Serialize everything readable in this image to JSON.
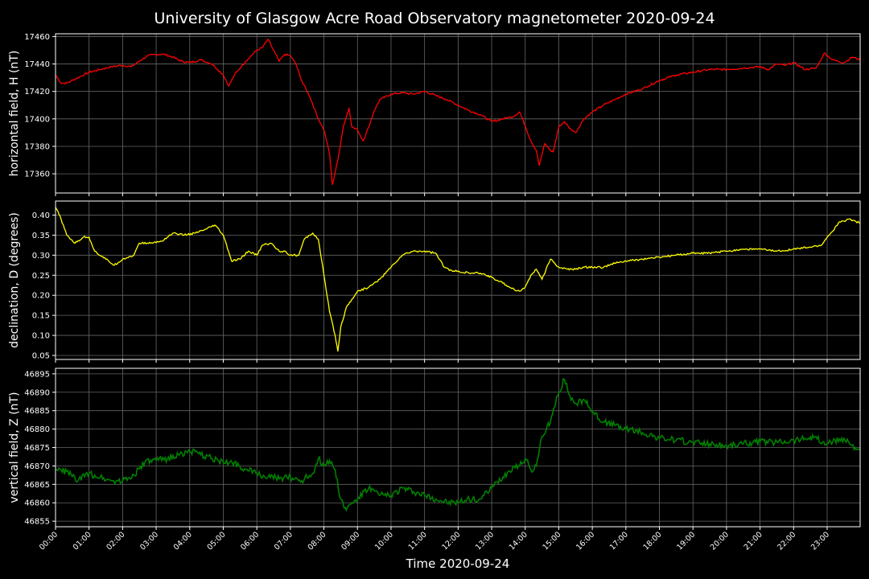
{
  "colors": {
    "background": "#000000",
    "grid": "#666666",
    "axis": "#ffffff",
    "H": "#ff0000",
    "D": "#ffff00",
    "Z": "#008000"
  },
  "chart_data": {
    "type": "line",
    "title": "University of Glasgow Acre Road Observatory magnetometer 2020-09-24",
    "xlabel": "Time 2020-09-24",
    "x_ticks": [
      "00:00",
      "01:00",
      "02:00",
      "03:00",
      "04:00",
      "05:00",
      "06:00",
      "07:00",
      "08:00",
      "09:00",
      "10:00",
      "11:00",
      "12:00",
      "13:00",
      "14:00",
      "15:00",
      "16:00",
      "17:00",
      "18:00",
      "19:00",
      "20:00",
      "21:00",
      "22:00",
      "23:00"
    ],
    "xlim": [
      "00:00",
      "23:59"
    ],
    "grid": true,
    "panels": [
      {
        "key": "H",
        "ylabel": "horizontal field, H (nT)",
        "ylim": [
          17346,
          17462
        ],
        "y_ticks": [
          17360,
          17380,
          17400,
          17420,
          17440,
          17460
        ],
        "tick_labels": [
          "17360",
          "17380",
          "17400",
          "17420",
          "17440",
          "17460"
        ],
        "points": [
          [
            "00:00",
            17432
          ],
          [
            "00:10",
            17426
          ],
          [
            "00:20",
            17426
          ],
          [
            "00:30",
            17428
          ],
          [
            "00:45",
            17431
          ],
          [
            "01:00",
            17434
          ],
          [
            "01:20",
            17436
          ],
          [
            "01:40",
            17438
          ],
          [
            "02:00",
            17439
          ],
          [
            "02:15",
            17438
          ],
          [
            "02:30",
            17442
          ],
          [
            "02:45",
            17446
          ],
          [
            "03:00",
            17447
          ],
          [
            "03:15",
            17447
          ],
          [
            "03:30",
            17445
          ],
          [
            "03:45",
            17442
          ],
          [
            "04:00",
            17441
          ],
          [
            "04:20",
            17443
          ],
          [
            "04:40",
            17440
          ],
          [
            "04:50",
            17436
          ],
          [
            "05:00",
            17432
          ],
          [
            "05:10",
            17424
          ],
          [
            "05:20",
            17432
          ],
          [
            "05:40",
            17442
          ],
          [
            "06:00",
            17450
          ],
          [
            "06:10",
            17452
          ],
          [
            "06:20",
            17458
          ],
          [
            "06:30",
            17450
          ],
          [
            "06:40",
            17442
          ],
          [
            "06:50",
            17447
          ],
          [
            "07:00",
            17446
          ],
          [
            "07:10",
            17440
          ],
          [
            "07:20",
            17428
          ],
          [
            "07:35",
            17416
          ],
          [
            "07:50",
            17400
          ],
          [
            "08:00",
            17392
          ],
          [
            "08:10",
            17375
          ],
          [
            "08:15",
            17352
          ],
          [
            "08:25",
            17370
          ],
          [
            "08:35",
            17395
          ],
          [
            "08:45",
            17408
          ],
          [
            "08:50",
            17394
          ],
          [
            "09:00",
            17392
          ],
          [
            "09:10",
            17384
          ],
          [
            "09:20",
            17394
          ],
          [
            "09:30",
            17406
          ],
          [
            "09:40",
            17414
          ],
          [
            "10:00",
            17418
          ],
          [
            "10:20",
            17419
          ],
          [
            "10:40",
            17418
          ],
          [
            "11:00",
            17420
          ],
          [
            "11:20",
            17417
          ],
          [
            "11:40",
            17414
          ],
          [
            "12:00",
            17410
          ],
          [
            "12:20",
            17406
          ],
          [
            "12:40",
            17403
          ],
          [
            "13:00",
            17398
          ],
          [
            "13:20",
            17400
          ],
          [
            "13:40",
            17402
          ],
          [
            "13:50",
            17405
          ],
          [
            "14:00",
            17395
          ],
          [
            "14:10",
            17384
          ],
          [
            "14:20",
            17377
          ],
          [
            "14:25",
            17366
          ],
          [
            "14:35",
            17382
          ],
          [
            "14:45",
            17377
          ],
          [
            "14:50",
            17376
          ],
          [
            "15:00",
            17394
          ],
          [
            "15:10",
            17398
          ],
          [
            "15:20",
            17393
          ],
          [
            "15:30",
            17390
          ],
          [
            "15:45",
            17400
          ],
          [
            "16:00",
            17405
          ],
          [
            "16:20",
            17410
          ],
          [
            "16:40",
            17414
          ],
          [
            "17:00",
            17418
          ],
          [
            "17:30",
            17422
          ],
          [
            "18:00",
            17428
          ],
          [
            "18:30",
            17432
          ],
          [
            "19:00",
            17434
          ],
          [
            "19:30",
            17436
          ],
          [
            "20:00",
            17436
          ],
          [
            "20:30",
            17437
          ],
          [
            "21:00",
            17438
          ],
          [
            "21:15",
            17436
          ],
          [
            "21:30",
            17440
          ],
          [
            "21:45",
            17439
          ],
          [
            "22:00",
            17441
          ],
          [
            "22:20",
            17436
          ],
          [
            "22:40",
            17437
          ],
          [
            "22:50",
            17444
          ],
          [
            "22:55",
            17448
          ],
          [
            "23:10",
            17443
          ],
          [
            "23:30",
            17441
          ],
          [
            "23:45",
            17445
          ],
          [
            "23:59",
            17443
          ]
        ]
      },
      {
        "key": "D",
        "ylabel": "declination, D (degrees)",
        "ylim": [
          0.04,
          0.435
        ],
        "y_ticks": [
          0.05,
          0.1,
          0.15,
          0.2,
          0.25,
          0.3,
          0.35,
          0.4
        ],
        "tick_labels": [
          "0.05",
          "0.10",
          "0.15",
          "0.20",
          "0.25",
          "0.30",
          "0.35",
          "0.40"
        ],
        "points": [
          [
            "00:00",
            0.42
          ],
          [
            "00:10",
            0.39
          ],
          [
            "00:20",
            0.35
          ],
          [
            "00:35",
            0.33
          ],
          [
            "00:50",
            0.345
          ],
          [
            "01:00",
            0.345
          ],
          [
            "01:10",
            0.31
          ],
          [
            "01:30",
            0.29
          ],
          [
            "01:45",
            0.275
          ],
          [
            "02:00",
            0.29
          ],
          [
            "02:20",
            0.3
          ],
          [
            "02:30",
            0.33
          ],
          [
            "02:50",
            0.33
          ],
          [
            "03:10",
            0.335
          ],
          [
            "03:30",
            0.355
          ],
          [
            "03:50",
            0.35
          ],
          [
            "04:10",
            0.355
          ],
          [
            "04:30",
            0.365
          ],
          [
            "04:45",
            0.375
          ],
          [
            "05:00",
            0.35
          ],
          [
            "05:15",
            0.285
          ],
          [
            "05:30",
            0.29
          ],
          [
            "05:45",
            0.31
          ],
          [
            "06:00",
            0.3
          ],
          [
            "06:10",
            0.325
          ],
          [
            "06:25",
            0.33
          ],
          [
            "06:40",
            0.31
          ],
          [
            "06:50",
            0.31
          ],
          [
            "07:00",
            0.3
          ],
          [
            "07:15",
            0.3
          ],
          [
            "07:25",
            0.34
          ],
          [
            "07:40",
            0.355
          ],
          [
            "07:50",
            0.34
          ],
          [
            "08:00",
            0.25
          ],
          [
            "08:10",
            0.16
          ],
          [
            "08:20",
            0.1
          ],
          [
            "08:25",
            0.06
          ],
          [
            "08:30",
            0.12
          ],
          [
            "08:40",
            0.17
          ],
          [
            "08:50",
            0.19
          ],
          [
            "09:00",
            0.21
          ],
          [
            "09:20",
            0.22
          ],
          [
            "09:40",
            0.24
          ],
          [
            "10:00",
            0.27
          ],
          [
            "10:20",
            0.3
          ],
          [
            "10:40",
            0.31
          ],
          [
            "11:00",
            0.31
          ],
          [
            "11:20",
            0.305
          ],
          [
            "11:35",
            0.27
          ],
          [
            "11:50",
            0.26
          ],
          [
            "12:00",
            0.26
          ],
          [
            "12:20",
            0.255
          ],
          [
            "12:40",
            0.255
          ],
          [
            "13:00",
            0.245
          ],
          [
            "13:20",
            0.23
          ],
          [
            "13:40",
            0.215
          ],
          [
            "13:50",
            0.21
          ],
          [
            "14:00",
            0.22
          ],
          [
            "14:10",
            0.25
          ],
          [
            "14:20",
            0.265
          ],
          [
            "14:30",
            0.24
          ],
          [
            "14:45",
            0.29
          ],
          [
            "15:00",
            0.27
          ],
          [
            "15:15",
            0.265
          ],
          [
            "15:30",
            0.265
          ],
          [
            "15:45",
            0.27
          ],
          [
            "16:00",
            0.27
          ],
          [
            "16:20",
            0.27
          ],
          [
            "16:40",
            0.28
          ],
          [
            "17:00",
            0.285
          ],
          [
            "17:30",
            0.29
          ],
          [
            "18:00",
            0.295
          ],
          [
            "18:30",
            0.3
          ],
          [
            "19:00",
            0.305
          ],
          [
            "19:30",
            0.305
          ],
          [
            "20:00",
            0.31
          ],
          [
            "20:30",
            0.315
          ],
          [
            "21:00",
            0.315
          ],
          [
            "21:30",
            0.31
          ],
          [
            "22:00",
            0.315
          ],
          [
            "22:30",
            0.32
          ],
          [
            "22:50",
            0.325
          ],
          [
            "23:00",
            0.345
          ],
          [
            "23:10",
            0.36
          ],
          [
            "23:20",
            0.38
          ],
          [
            "23:40",
            0.39
          ],
          [
            "23:59",
            0.38
          ]
        ]
      },
      {
        "key": "Z",
        "ylabel": "vertical field, Z (nT)",
        "ylim": [
          46853.5,
          46896.5
        ],
        "y_ticks": [
          46855,
          46860,
          46865,
          46870,
          46875,
          46880,
          46885,
          46890,
          46895
        ],
        "tick_labels": [
          "46855",
          "46860",
          "46865",
          "46870",
          "46875",
          "46880",
          "46885",
          "46890",
          "46895"
        ],
        "points": [
          [
            "00:00",
            46869
          ],
          [
            "00:20",
            46868.5
          ],
          [
            "00:40",
            46866
          ],
          [
            "01:00",
            46868
          ],
          [
            "01:20",
            46867
          ],
          [
            "01:40",
            46866
          ],
          [
            "02:00",
            46866
          ],
          [
            "02:20",
            46867.5
          ],
          [
            "02:40",
            46871
          ],
          [
            "03:00",
            46871.5
          ],
          [
            "03:20",
            46872
          ],
          [
            "03:40",
            46873
          ],
          [
            "04:00",
            46874
          ],
          [
            "04:20",
            46873
          ],
          [
            "04:40",
            46872
          ],
          [
            "05:00",
            46871
          ],
          [
            "05:20",
            46871
          ],
          [
            "05:40",
            46869
          ],
          [
            "06:00",
            46868
          ],
          [
            "06:20",
            46867
          ],
          [
            "06:40",
            46866.5
          ],
          [
            "07:00",
            46867
          ],
          [
            "07:20",
            46866
          ],
          [
            "07:40",
            46868
          ],
          [
            "07:50",
            46872
          ],
          [
            "08:00",
            46870
          ],
          [
            "08:10",
            46871.5
          ],
          [
            "08:20",
            46869
          ],
          [
            "08:30",
            46861
          ],
          [
            "08:40",
            46858
          ],
          [
            "08:50",
            46860
          ],
          [
            "09:00",
            46861
          ],
          [
            "09:20",
            46864
          ],
          [
            "09:40",
            46862
          ],
          [
            "10:00",
            46862
          ],
          [
            "10:20",
            46864
          ],
          [
            "10:40",
            46863
          ],
          [
            "11:00",
            46862
          ],
          [
            "11:20",
            46861
          ],
          [
            "11:40",
            46860
          ],
          [
            "12:00",
            46860
          ],
          [
            "12:20",
            46861
          ],
          [
            "12:40",
            46861
          ],
          [
            "13:00",
            46864
          ],
          [
            "13:20",
            46867
          ],
          [
            "13:40",
            46870
          ],
          [
            "13:50",
            46870
          ],
          [
            "14:00",
            46872
          ],
          [
            "14:10",
            46869
          ],
          [
            "14:20",
            46870
          ],
          [
            "14:30",
            46878
          ],
          [
            "14:45",
            46882
          ],
          [
            "15:00",
            46890
          ],
          [
            "15:10",
            46893.5
          ],
          [
            "15:20",
            46889
          ],
          [
            "15:30",
            46887
          ],
          [
            "15:45",
            46888
          ],
          [
            "16:00",
            46885
          ],
          [
            "16:20",
            46882
          ],
          [
            "16:40",
            46881
          ],
          [
            "17:00",
            46880
          ],
          [
            "17:30",
            46879
          ],
          [
            "18:00",
            46877.5
          ],
          [
            "18:30",
            46877
          ],
          [
            "19:00",
            46876.5
          ],
          [
            "19:30",
            46876
          ],
          [
            "20:00",
            46875.5
          ],
          [
            "20:30",
            46876
          ],
          [
            "21:00",
            46876.5
          ],
          [
            "21:30",
            46876.5
          ],
          [
            "22:00",
            46877
          ],
          [
            "22:20",
            46877.5
          ],
          [
            "22:40",
            46878
          ],
          [
            "22:50",
            46876
          ],
          [
            "23:10",
            46876.5
          ],
          [
            "23:30",
            46877.5
          ],
          [
            "23:50",
            46875
          ],
          [
            "23:59",
            46874.5
          ]
        ]
      }
    ]
  }
}
